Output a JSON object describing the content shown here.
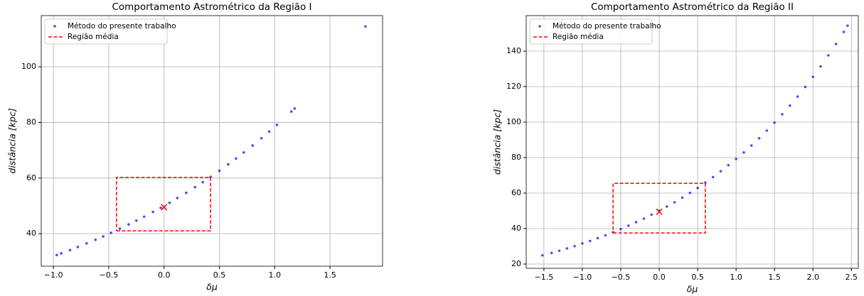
{
  "chart_data": [
    {
      "type": "scatter",
      "title": "Comportamento Astrométrico da Região I",
      "xlabel": "δμ",
      "ylabel": "distância [kpc]",
      "xlim": [
        -1.11,
        1.975
      ],
      "ylim": [
        28.3,
        118.4
      ],
      "xticks": [
        {
          "value": -1.0,
          "label": "−1.0"
        },
        {
          "value": -0.5,
          "label": "−0.5"
        },
        {
          "value": 0,
          "label": "0.0"
        },
        {
          "value": 0.5,
          "label": "0.5"
        },
        {
          "value": 1.0,
          "label": "1.0"
        },
        {
          "value": 1.5,
          "label": "1.5"
        }
      ],
      "yticks": [
        40,
        60,
        80,
        100
      ],
      "grid": true,
      "legend": "upper left",
      "series": [
        {
          "name": "Método do presente trabalho",
          "color": "#0000ff",
          "style": "points",
          "x": [
            -0.97,
            -0.93,
            -0.85,
            -0.78,
            -0.7,
            -0.62,
            -0.55,
            -0.48,
            -0.4,
            -0.32,
            -0.25,
            -0.18,
            -0.1,
            -0.03,
            0.05,
            0.12,
            0.2,
            0.28,
            0.35,
            0.42,
            0.5,
            0.58,
            0.65,
            0.72,
            0.8,
            0.88,
            0.95,
            1.02,
            1.15,
            1.18,
            1.82
          ],
          "values": [
            32.3,
            32.9,
            34.1,
            35.2,
            36.5,
            37.8,
            39.0,
            40.3,
            41.8,
            43.3,
            44.7,
            46.1,
            47.8,
            49.3,
            51.1,
            52.8,
            54.7,
            56.7,
            58.5,
            60.4,
            62.6,
            64.9,
            67.0,
            69.2,
            71.7,
            74.3,
            76.7,
            79.1,
            83.9,
            85.0,
            114.5
          ]
        },
        {
          "name": "Região média",
          "color": "#ff0000",
          "style": "dashed",
          "x": [
            -0.43,
            0.42,
            0.42,
            -0.43,
            -0.43
          ],
          "values": [
            41,
            41,
            60.2,
            60.2,
            41
          ]
        }
      ],
      "marker": {
        "x": 0,
        "y": 49.5,
        "color": "#ff0000"
      }
    },
    {
      "type": "scatter",
      "title": "Comportamento Astrométrico da Região II",
      "xlabel": "δμ",
      "ylabel": "distância [kpc]",
      "xlim": [
        -1.73,
        2.59
      ],
      "ylim": [
        17.6,
        160
      ],
      "xticks": [
        {
          "value": -1.5,
          "label": "−1.5"
        },
        {
          "value": -1.0,
          "label": "−1.0"
        },
        {
          "value": -0.5,
          "label": "−0.5"
        },
        {
          "value": 0,
          "label": "0.0"
        },
        {
          "value": 0.5,
          "label": "0.5"
        },
        {
          "value": 1.0,
          "label": "1.0"
        },
        {
          "value": 1.5,
          "label": "1.5"
        },
        {
          "value": 2.0,
          "label": "2.0"
        },
        {
          "value": 2.5,
          "label": "2.5"
        }
      ],
      "yticks": [
        20,
        40,
        60,
        80,
        100,
        120,
        140
      ],
      "grid": true,
      "legend": "upper left",
      "series": [
        {
          "name": "Método do presente trabalho",
          "color": "#0000ff",
          "style": "points",
          "x": [
            -1.52,
            -1.4,
            -1.3,
            -1.2,
            -1.1,
            -1.0,
            -0.9,
            -0.8,
            -0.7,
            -0.6,
            -0.5,
            -0.4,
            -0.3,
            -0.2,
            -0.1,
            0,
            0.1,
            0.2,
            0.3,
            0.4,
            0.5,
            0.6,
            0.7,
            0.8,
            0.9,
            1.0,
            1.1,
            1.2,
            1.3,
            1.4,
            1.5,
            1.6,
            1.7,
            1.8,
            1.9,
            2.0,
            2.1,
            2.2,
            2.3,
            2.4,
            2.45
          ],
          "values": [
            24.9,
            26.3,
            27.5,
            28.8,
            30.1,
            31.6,
            33.0,
            34.6,
            36.2,
            37.9,
            39.7,
            41.6,
            43.6,
            45.6,
            47.8,
            50,
            52.4,
            54.8,
            57.4,
            60.1,
            62.9,
            65.9,
            69.0,
            72.3,
            75.7,
            79.2,
            82.9,
            86.8,
            90.9,
            95.2,
            99.7,
            104.4,
            109.3,
            114.4,
            119.8,
            125.5,
            131.4,
            137.6,
            144.0,
            150.8,
            154.3
          ]
        },
        {
          "name": "Região média",
          "color": "#ff0000",
          "style": "dashed",
          "x": [
            -0.6,
            0.6,
            0.6,
            -0.6,
            -0.6
          ],
          "values": [
            37.5,
            37.5,
            65.5,
            65.5,
            37.5
          ]
        }
      ],
      "marker": {
        "x": 0,
        "y": 49.5,
        "color": "#ff0000"
      }
    }
  ]
}
